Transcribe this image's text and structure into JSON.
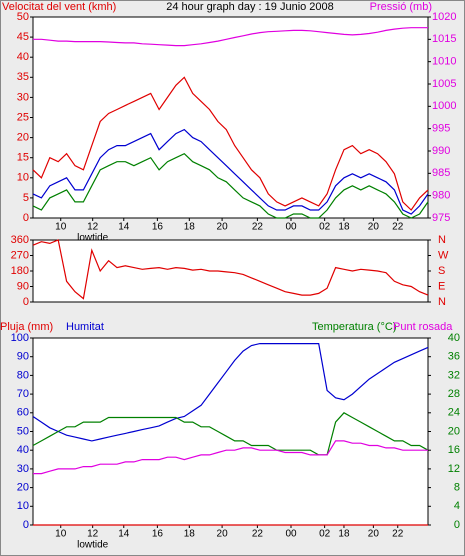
{
  "chart_data": [
    {
      "type": "line",
      "title_left": "Velocitat del vent (kmh)",
      "title": "24 hour graph day : 19 Junio 2008",
      "title_right": "Pressió (mb)",
      "title_colors": [
        "#e00000",
        "#000000",
        "#e000e0"
      ],
      "annotations": [
        {
          "text": "lowtide",
          "x": 7.1
        }
      ],
      "x": [
        0,
        1,
        2,
        3,
        4,
        5,
        6,
        7,
        8,
        9,
        10,
        11,
        12,
        13,
        14,
        15,
        16,
        17,
        18,
        19,
        20,
        21,
        22,
        23,
        24,
        25,
        26,
        27,
        28,
        29,
        30,
        31,
        32,
        33,
        34,
        35,
        36,
        37,
        38,
        39,
        40,
        41,
        42,
        43,
        44,
        45,
        46,
        47
      ],
      "xlim": [
        0,
        47
      ],
      "xticks": [
        {
          "value": 3.3,
          "label": "10"
        },
        {
          "value": 7.1,
          "label": "12"
        },
        {
          "value": 10.8,
          "label": "14"
        },
        {
          "value": 14.8,
          "label": "16"
        },
        {
          "value": 18.6,
          "label": "18"
        },
        {
          "value": 22.5,
          "label": "20"
        },
        {
          "value": 26.7,
          "label": "22"
        },
        {
          "value": 30.7,
          "label": "00"
        },
        {
          "value": 34.7,
          "label": "02"
        },
        {
          "value": 37,
          "label": "18"
        },
        {
          "value": 40.5,
          "label": "20"
        },
        {
          "value": 43.4,
          "label": "22"
        }
      ],
      "ylim": [
        0,
        50
      ],
      "yticks": [
        0,
        5,
        10,
        15,
        20,
        25,
        30,
        35,
        40,
        45,
        50
      ],
      "y_axis_color": "#e00000",
      "y2lim": [
        975,
        1020
      ],
      "y2ticks": [
        975,
        980,
        985,
        990,
        995,
        1000,
        1005,
        1010,
        1015,
        1020
      ],
      "y2_axis_color": "#e000e0",
      "series": [
        {
          "color": "#e00000",
          "values": [
            12,
            10,
            15,
            14,
            16,
            13,
            12,
            18,
            24,
            26,
            27,
            28,
            29,
            30,
            31,
            27,
            30,
            33,
            35,
            31,
            29,
            27,
            24,
            22,
            18,
            15,
            12,
            10,
            6,
            4,
            3,
            4,
            5,
            4,
            3,
            6,
            12,
            17,
            18,
            16,
            17,
            16,
            14,
            11,
            4,
            2,
            5,
            7
          ]
        },
        {
          "color": "#008000",
          "values": [
            3,
            2,
            5,
            6,
            7,
            4,
            4,
            8,
            12,
            13,
            14,
            14,
            13,
            14,
            15,
            12,
            14,
            15,
            16,
            14,
            13,
            12,
            10,
            9,
            7,
            5,
            4,
            3,
            1,
            0,
            0,
            1,
            1,
            0,
            0,
            2,
            5,
            7,
            8,
            7,
            8,
            7,
            6,
            4,
            1,
            0,
            1,
            4
          ]
        },
        {
          "color": "#0000d0",
          "values": [
            6,
            5,
            8,
            9,
            10,
            7,
            7,
            11,
            15,
            17,
            18,
            18,
            19,
            20,
            21,
            17,
            19,
            21,
            22,
            20,
            19,
            17,
            15,
            13,
            11,
            9,
            7,
            5,
            3,
            2,
            2,
            3,
            3,
            2,
            2,
            4,
            8,
            10,
            11,
            10,
            11,
            10,
            9,
            7,
            2,
            1,
            3,
            6
          ]
        },
        {
          "color": "#e000e0",
          "axis": "y2",
          "values": [
            1015,
            1015,
            1014.8,
            1014.6,
            1014.6,
            1014.5,
            1014.5,
            1014.5,
            1014.5,
            1014.4,
            1014.3,
            1014.2,
            1014.2,
            1014,
            1013.9,
            1013.8,
            1013.7,
            1013.6,
            1013.6,
            1013.8,
            1014,
            1014.3,
            1014.6,
            1015,
            1015.4,
            1015.8,
            1016.2,
            1016.5,
            1016.7,
            1016.8,
            1016.9,
            1017,
            1017,
            1016.9,
            1016.7,
            1016.5,
            1016.3,
            1016.1,
            1016,
            1016.1,
            1016.3,
            1016.6,
            1017,
            1017.3,
            1017.5,
            1017.6,
            1017.6,
            1017.6
          ]
        }
      ]
    },
    {
      "type": "line",
      "x": [
        0,
        1,
        2,
        3,
        4,
        5,
        6,
        7,
        8,
        9,
        10,
        11,
        12,
        13,
        14,
        15,
        16,
        17,
        18,
        19,
        20,
        21,
        22,
        23,
        24,
        25,
        26,
        27,
        28,
        29,
        30,
        31,
        32,
        33,
        34,
        35,
        36,
        37,
        38,
        39,
        40,
        41,
        42,
        43,
        44,
        45,
        46,
        47
      ],
      "xlim": [
        0,
        47
      ],
      "ylim": [
        0,
        360
      ],
      "yticks": [
        0,
        90,
        180,
        270,
        360
      ],
      "y_axis_color": "#e00000",
      "y2lim": [
        0,
        360
      ],
      "y2ticks": [
        {
          "value": 0,
          "label": "N"
        },
        {
          "value": 90,
          "label": "E"
        },
        {
          "value": 180,
          "label": "S"
        },
        {
          "value": 270,
          "label": "W"
        },
        {
          "value": 360,
          "label": "N"
        }
      ],
      "y2_axis_color": "#e00000",
      "series": [
        {
          "color": "#e00000",
          "values": [
            330,
            350,
            340,
            360,
            120,
            60,
            20,
            300,
            180,
            240,
            200,
            210,
            200,
            190,
            195,
            200,
            190,
            200,
            195,
            185,
            190,
            180,
            180,
            175,
            170,
            160,
            140,
            120,
            100,
            80,
            60,
            50,
            40,
            40,
            50,
            80,
            200,
            190,
            180,
            190,
            185,
            180,
            170,
            120,
            100,
            90,
            60,
            40
          ]
        }
      ]
    },
    {
      "type": "line",
      "title_left": "Pluja (mm)",
      "title": "Humitat",
      "title_right": "Temperatura (°C)",
      "title_extra": "Punt rosada",
      "title_colors": [
        "#e00000",
        "#0000d0",
        "#008000",
        "#e000e0"
      ],
      "annotations": [
        {
          "text": "lowtide",
          "x": 7.1
        }
      ],
      "x": [
        0,
        1,
        2,
        3,
        4,
        5,
        6,
        7,
        8,
        9,
        10,
        11,
        12,
        13,
        14,
        15,
        16,
        17,
        18,
        19,
        20,
        21,
        22,
        23,
        24,
        25,
        26,
        27,
        28,
        29,
        30,
        31,
        32,
        33,
        34,
        35,
        36,
        37,
        38,
        39,
        40,
        41,
        42,
        43,
        44,
        45,
        46,
        47
      ],
      "xlim": [
        0,
        47
      ],
      "xticks": [
        {
          "value": 3.3,
          "label": "10"
        },
        {
          "value": 7.1,
          "label": "12"
        },
        {
          "value": 10.8,
          "label": "14"
        },
        {
          "value": 14.8,
          "label": "16"
        },
        {
          "value": 18.6,
          "label": "18"
        },
        {
          "value": 22.5,
          "label": "20"
        },
        {
          "value": 26.7,
          "label": "22"
        },
        {
          "value": 30.7,
          "label": "00"
        },
        {
          "value": 34.7,
          "label": "02"
        },
        {
          "value": 37,
          "label": "18"
        },
        {
          "value": 40.5,
          "label": "20"
        },
        {
          "value": 43.4,
          "label": "22"
        }
      ],
      "ylim": [
        0,
        100
      ],
      "yticks": [
        0,
        10,
        20,
        30,
        40,
        50,
        60,
        70,
        80,
        90,
        100
      ],
      "y_axis_color": "#0000d0",
      "y2lim": [
        0,
        40
      ],
      "y2ticks": [
        0,
        4,
        8,
        12,
        16,
        20,
        24,
        28,
        32,
        36,
        40
      ],
      "y2_axis_color": "#008000",
      "series": [
        {
          "color": "#e00000",
          "values": [
            0,
            0,
            0,
            0,
            0,
            0,
            0,
            0,
            0,
            0,
            0,
            0,
            0,
            0,
            0,
            0,
            0,
            0,
            0,
            0,
            0,
            0,
            0,
            0,
            0,
            0,
            0,
            0,
            0,
            0,
            0,
            0,
            0,
            0,
            0,
            0,
            0,
            0,
            0,
            0,
            0,
            0,
            0,
            0,
            0,
            0,
            0,
            0
          ]
        },
        {
          "color": "#0000d0",
          "values": [
            58,
            55,
            52,
            50,
            48,
            47,
            46,
            45,
            46,
            47,
            48,
            49,
            50,
            51,
            52,
            53,
            55,
            57,
            58,
            61,
            64,
            70,
            76,
            82,
            88,
            93,
            96,
            97,
            97,
            97,
            97,
            97,
            97,
            97,
            97,
            72,
            68,
            67,
            70,
            74,
            78,
            81,
            84,
            87,
            89,
            91,
            93,
            95
          ]
        },
        {
          "color": "#008000",
          "axis": "y2",
          "values": [
            17,
            18,
            19,
            20,
            21,
            21,
            22,
            22,
            22,
            23,
            23,
            23,
            23,
            23,
            23,
            23,
            23,
            23,
            22,
            22,
            21,
            21,
            20,
            19,
            18,
            18,
            17,
            17,
            17,
            16,
            16,
            16,
            16,
            16,
            15,
            15,
            22,
            24,
            23,
            22,
            21,
            20,
            19,
            18,
            18,
            17,
            17,
            16
          ]
        },
        {
          "color": "#e000e0",
          "axis": "y2",
          "values": [
            11,
            11,
            11.5,
            12,
            12,
            12,
            12.5,
            12.5,
            13,
            13,
            13,
            13.5,
            13.5,
            14,
            14,
            14,
            14.5,
            14.5,
            14,
            14.5,
            15,
            15,
            15.5,
            16,
            16,
            16.5,
            16.5,
            16,
            16,
            16,
            15.5,
            15.5,
            15.5,
            15,
            15,
            15,
            18,
            18,
            17.5,
            17.5,
            17,
            17,
            16.5,
            16.5,
            16,
            16,
            16,
            16
          ]
        }
      ]
    }
  ]
}
